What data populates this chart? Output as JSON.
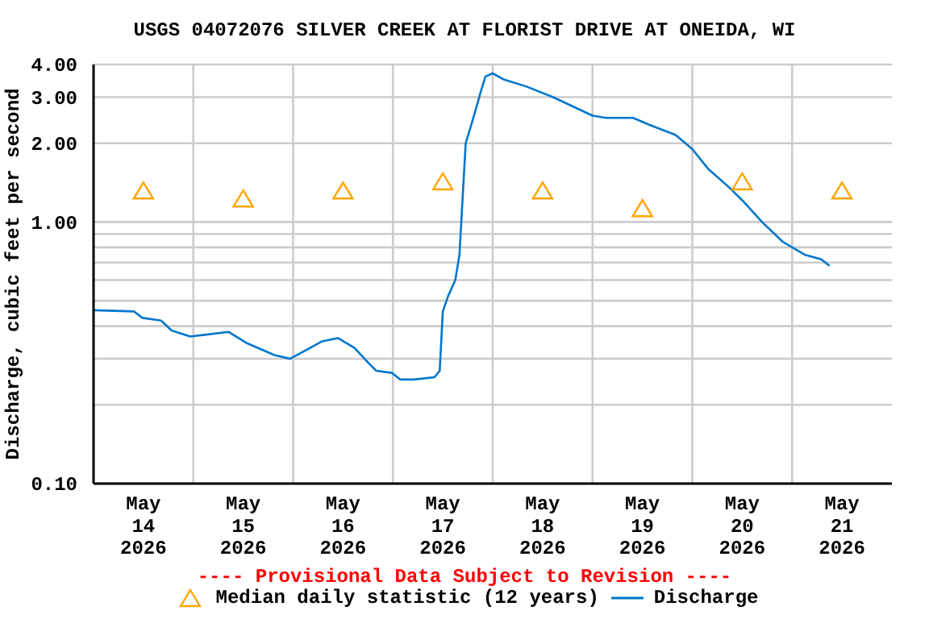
{
  "chart_data": {
    "type": "line",
    "title": "USGS 04072076 SILVER CREEK AT FLORIST DRIVE AT ONEIDA, WI",
    "ylabel": "Discharge, cubic feet per second",
    "annotations": [
      "---- Provisional Data Subject to Revision ----"
    ],
    "log": "y",
    "grid": true,
    "legend": "bottom",
    "xlim": [
      "2026-05-14T00:00",
      "2026-05-22T00:00"
    ],
    "xticks": [
      {
        "value": "2026-05-14T12:00",
        "label": "May\n14\n2026"
      },
      {
        "value": "2026-05-15T12:00",
        "label": "May\n15\n2026"
      },
      {
        "value": "2026-05-16T12:00",
        "label": "May\n16\n2026"
      },
      {
        "value": "2026-05-17T12:00",
        "label": "May\n17\n2026"
      },
      {
        "value": "2026-05-18T12:00",
        "label": "May\n18\n2026"
      },
      {
        "value": "2026-05-19T12:00",
        "label": "May\n19\n2026"
      },
      {
        "value": "2026-05-20T12:00",
        "label": "May\n20\n2026"
      },
      {
        "value": "2026-05-21T12:00",
        "label": "May\n21\n2026"
      },
      {
        "value": "2026-05-15T00:00",
        "label": null
      },
      {
        "value": "2026-05-16T00:00",
        "label": null
      },
      {
        "value": "2026-05-17T00:00",
        "label": null
      },
      {
        "value": "2026-05-18T00:00",
        "label": null
      },
      {
        "value": "2026-05-19T00:00",
        "label": null
      },
      {
        "value": "2026-05-20T00:00",
        "label": null
      },
      {
        "value": "2026-05-21T00:00",
        "label": null
      }
    ],
    "ylim": [
      0.1,
      4
    ],
    "yticks": [
      {
        "value": 0.1,
        "label": "0.10"
      },
      {
        "value": 0.2,
        "label": null
      },
      {
        "value": 0.3,
        "label": null
      },
      {
        "value": 0.4,
        "label": null
      },
      {
        "value": 0.5,
        "label": null
      },
      {
        "value": 0.6,
        "label": null
      },
      {
        "value": 0.7,
        "label": null
      },
      {
        "value": 0.8,
        "label": null
      },
      {
        "value": 0.9,
        "label": null
      },
      {
        "value": 1,
        "label": "1.00"
      },
      {
        "value": 2,
        "label": "2.00"
      },
      {
        "value": 3,
        "label": "3.00"
      },
      {
        "value": 4,
        "label": "4.00"
      }
    ],
    "series": [
      {
        "name": "Median daily statistic (12 years)",
        "type": "scatter",
        "marker": "triangle",
        "color": "#ffa500",
        "x": [
          "2026-05-14T12:00",
          "2026-05-15T12:00",
          "2026-05-16T12:00",
          "2026-05-17T12:00",
          "2026-05-18T12:00",
          "2026-05-19T12:00",
          "2026-05-20T12:00",
          "2026-05-21T12:00"
        ],
        "values": [
          1.32,
          1.23,
          1.32,
          1.43,
          1.32,
          1.13,
          1.43,
          1.32
        ]
      },
      {
        "name": "Discharge",
        "marker": "none",
        "color": "#0077cc",
        "x": [
          "2026-05-14T00:00",
          "2026-05-14T09:45",
          "2026-05-14T11:45",
          "2026-05-14T16:15",
          "2026-05-14T18:45",
          "2026-05-14T23:15",
          "2026-05-15T08:30",
          "2026-05-15T12:45",
          "2026-05-15T19:30",
          "2026-05-15T23:15",
          "2026-05-16T02:30",
          "2026-05-16T07:00",
          "2026-05-16T10:45",
          "2026-05-16T14:45",
          "2026-05-16T18:30",
          "2026-05-16T20:00",
          "2026-05-16T23:45",
          "2026-05-17T01:45",
          "2026-05-17T05:00",
          "2026-05-17T10:00",
          "2026-05-17T11:15",
          "2026-05-17T12:00",
          "2026-05-17T13:15",
          "2026-05-17T15:00",
          "2026-05-17T16:00",
          "2026-05-17T16:30",
          "2026-05-17T17:30",
          "2026-05-17T19:00",
          "2026-05-17T20:30",
          "2026-05-17T21:00",
          "2026-05-17T22:15",
          "2026-05-18T00:00",
          "2026-05-18T02:45",
          "2026-05-18T08:00",
          "2026-05-18T14:30",
          "2026-05-19T00:00",
          "2026-05-19T03:15",
          "2026-05-19T09:45",
          "2026-05-19T13:45",
          "2026-05-19T20:00",
          "2026-05-20T00:00",
          "2026-05-20T03:45",
          "2026-05-20T09:00",
          "2026-05-20T12:15",
          "2026-05-20T16:45",
          "2026-05-20T21:45",
          "2026-05-21T03:00",
          "2026-05-21T07:00",
          "2026-05-21T09:00"
        ],
        "values": [
          0.46,
          0.455,
          0.43,
          0.42,
          0.385,
          0.365,
          0.38,
          0.345,
          0.31,
          0.3,
          0.32,
          0.35,
          0.36,
          0.33,
          0.285,
          0.27,
          0.265,
          0.25,
          0.25,
          0.255,
          0.27,
          0.455,
          0.52,
          0.6,
          0.75,
          1.04,
          2.0,
          2.4,
          2.9,
          3.1,
          3.6,
          3.7,
          3.5,
          3.3,
          3.0,
          2.55,
          2.5,
          2.5,
          2.35,
          2.15,
          1.9,
          1.6,
          1.35,
          1.2,
          1.0,
          0.84,
          0.75,
          0.72,
          0.68
        ]
      }
    ]
  }
}
